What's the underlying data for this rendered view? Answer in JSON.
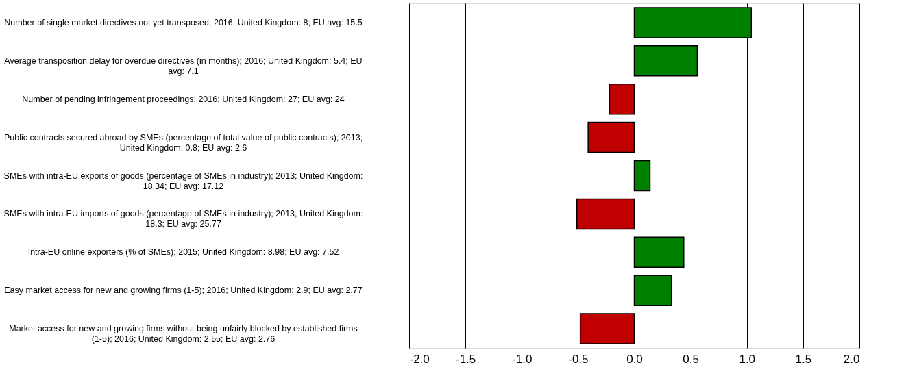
{
  "chart_data": {
    "type": "bar",
    "orientation": "horizontal",
    "categories": [
      "Number of single market directives not yet transposed; 2016; United Kingdom: 8; EU avg: 15.5",
      "Average transposition delay for overdue directives (in months); 2016; United Kingdom: 5.4; EU avg: 7.1",
      "Number of pending infringement proceedings; 2016; United Kingdom: 27; EU avg: 24",
      "Public contracts secured abroad by SMEs (percentage of total value of public contracts); 2013; United Kingdom: 0.8; EU avg: 2.6",
      "SMEs with intra-EU exports of goods (percentage of SMEs in industry); 2013; United Kingdom: 18.34; EU avg: 17.12",
      "SMEs with intra-EU imports of goods (percentage of SMEs in industry); 2013; United Kingdom: 18.3; EU avg: 25.77",
      "Intra-EU online exporters (% of SMEs); 2015; United Kingdom: 8.98; EU avg: 7.52",
      "Easy market access for new and growing firms (1-5); 2016; United Kingdom: 2.9; EU avg: 2.77",
      "Market access for new and growing firms without being unfairly blocked by established firms (1-5); 2016; United Kingdom: 2.55; EU avg: 2.76"
    ],
    "values": [
      1.04,
      0.56,
      -0.22,
      -0.41,
      0.14,
      -0.51,
      0.44,
      0.33,
      -0.48
    ],
    "colors": [
      "#008000",
      "#008000",
      "#c00000",
      "#c00000",
      "#008000",
      "#c00000",
      "#008000",
      "#008000",
      "#c00000"
    ],
    "xlim": [
      -2,
      2
    ],
    "xticks": [
      {
        "value": -2,
        "label": "-2.0"
      },
      {
        "value": -1.5,
        "label": "-1.5"
      },
      {
        "value": -1,
        "label": "-1.0"
      },
      {
        "value": -0.5,
        "label": "-0.5"
      },
      {
        "value": 0,
        "label": "0.0"
      },
      {
        "value": 0.5,
        "label": "0.5"
      },
      {
        "value": 1,
        "label": "1.0"
      },
      {
        "value": 1.5,
        "label": "1.5"
      },
      {
        "value": 2,
        "label": "2.0"
      }
    ],
    "grid": "x",
    "tick_labels": "x"
  }
}
